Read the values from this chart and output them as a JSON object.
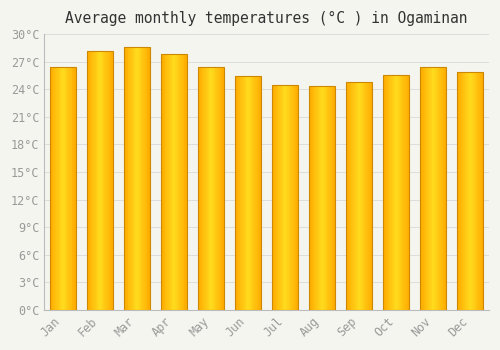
{
  "title": "Average monthly temperatures (°C ) in Ogaminan",
  "months": [
    "Jan",
    "Feb",
    "Mar",
    "Apr",
    "May",
    "Jun",
    "Jul",
    "Aug",
    "Sep",
    "Oct",
    "Nov",
    "Dec"
  ],
  "temperatures": [
    26.4,
    28.2,
    28.6,
    27.8,
    26.4,
    25.4,
    24.5,
    24.4,
    24.8,
    25.6,
    26.4,
    25.9
  ],
  "bar_color_main": "#FFAA00",
  "bar_color_light": "#FFD050",
  "bar_edge_color": "#CC8800",
  "background_color": "#F5F5F0",
  "grid_color": "#DDDDDD",
  "tick_label_color": "#999999",
  "title_color": "#333333",
  "ylim": [
    0,
    30
  ],
  "yticks": [
    0,
    3,
    6,
    9,
    12,
    15,
    18,
    21,
    24,
    27,
    30
  ],
  "ylabel_suffix": "°C",
  "title_fontsize": 10.5,
  "tick_fontsize": 8.5,
  "font_family": "monospace",
  "bar_width": 0.7,
  "figsize": [
    5.0,
    3.5
  ],
  "dpi": 100
}
